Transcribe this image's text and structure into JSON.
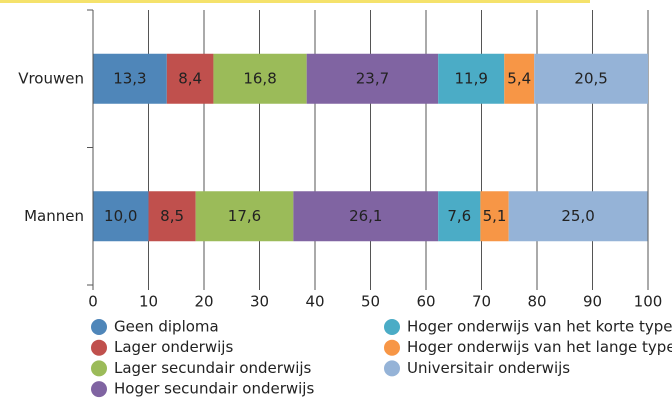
{
  "chart_data": {
    "type": "stacked_barh",
    "categories": [
      "Vrouwen",
      "Mannen"
    ],
    "series": [
      {
        "name": "Geen diploma",
        "color": "#4f86b9",
        "values": [
          13.3,
          10.0
        ],
        "value_labels": [
          "13,3",
          "10,0"
        ]
      },
      {
        "name": "Lager onderwijs",
        "color": "#c0504d",
        "values": [
          8.4,
          8.5
        ],
        "value_labels": [
          "8,4",
          "8,5"
        ]
      },
      {
        "name": "Lager secundair onderwijs",
        "color": "#9bbb59",
        "values": [
          16.8,
          17.6
        ],
        "value_labels": [
          "16,8",
          "17,6"
        ]
      },
      {
        "name": "Hoger secundair onderwijs",
        "color": "#8064a2",
        "values": [
          23.7,
          26.1
        ],
        "value_labels": [
          "23,7",
          "26,1"
        ]
      },
      {
        "name": "Hoger onderwijs van het korte type",
        "color": "#4bacc6",
        "values": [
          11.9,
          7.6
        ],
        "value_labels": [
          "11,9",
          "7,6"
        ]
      },
      {
        "name": "Hoger onderwijs van het lange type",
        "color": "#f79646",
        "values": [
          5.4,
          5.1
        ],
        "value_labels": [
          "5,4",
          "5,1"
        ]
      },
      {
        "name": "Universitair onderwijs",
        "color": "#95b3d7",
        "values": [
          20.5,
          25.0
        ],
        "value_labels": [
          "20,5",
          "25,0"
        ]
      }
    ],
    "xlim": [
      0,
      100
    ],
    "xticks": [
      0,
      10,
      20,
      30,
      40,
      50,
      60,
      70,
      80,
      90,
      100
    ],
    "grid": true
  }
}
